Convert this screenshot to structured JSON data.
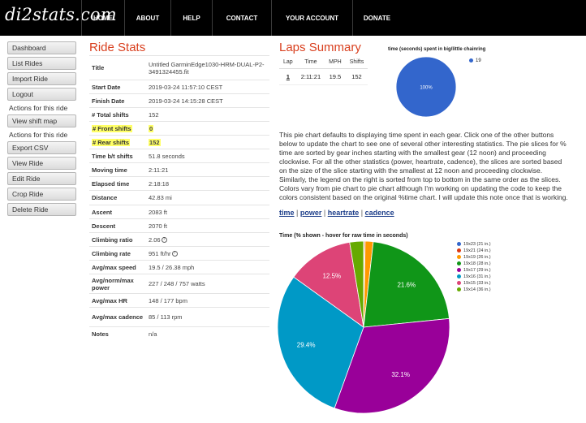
{
  "logo": "di2stats.com",
  "nav": [
    "HOME",
    "ABOUT",
    "HELP",
    "CONTACT",
    "YOUR ACCOUNT",
    "DONATE"
  ],
  "sidebar": [
    {
      "type": "button",
      "label": "Dashboard"
    },
    {
      "type": "button",
      "label": "List Rides"
    },
    {
      "type": "button",
      "label": "Import Ride"
    },
    {
      "type": "button",
      "label": "Logout"
    },
    {
      "type": "label",
      "label": "Actions for this ride"
    },
    {
      "type": "button",
      "label": "View shift map"
    },
    {
      "type": "label",
      "label": "Actions for this ride"
    },
    {
      "type": "button",
      "label": "Export CSV"
    },
    {
      "type": "button",
      "label": "View Ride"
    },
    {
      "type": "button",
      "label": "Edit Ride"
    },
    {
      "type": "button",
      "label": "Crop Ride"
    },
    {
      "type": "button",
      "label": "Delete Ride"
    }
  ],
  "ride_stats": {
    "title": "Ride Stats",
    "rows": [
      {
        "k": "Title",
        "v": "Untitled GarminEdge1030-HRM-DUAL-P2-3491324455.fit"
      },
      {
        "k": "Start Date",
        "v": "2019-03-24 11:57:10 CEST"
      },
      {
        "k": "Finish Date",
        "v": "2019-03-24 14:15:28 CEST"
      },
      {
        "k": "# Total shifts",
        "v": "152"
      },
      {
        "k": "# Front shifts",
        "v": "0",
        "highlight": true
      },
      {
        "k": "# Rear shifts",
        "v": "152",
        "highlight": true
      },
      {
        "k": "Time b/t shifts",
        "v": "51.8 seconds"
      },
      {
        "k": "Moving time",
        "v": "2:11:21"
      },
      {
        "k": "Elapsed time",
        "v": "2:18:18"
      },
      {
        "k": "Distance",
        "v": "42.83 mi"
      },
      {
        "k": "Ascent",
        "v": "2083 ft"
      },
      {
        "k": "Descent",
        "v": "2070 ft"
      },
      {
        "k": "Climbing ratio",
        "v": "2.06",
        "info": true
      },
      {
        "k": "Climbing rate",
        "v": "951 ft/hr",
        "info": true
      },
      {
        "k": "Avg/max speed",
        "v": "19.5 / 26.38 mph"
      },
      {
        "k": "Avg/norm/max power",
        "v": "227 / 248 / 757 watts"
      },
      {
        "k": "Avg/max HR",
        "v": "148 / 177 bpm"
      },
      {
        "k": "Avg/max cadence",
        "v": "85 / 113 rpm"
      },
      {
        "k": "Notes",
        "v": "n/a"
      }
    ]
  },
  "laps": {
    "title": "Laps Summary",
    "headers": [
      "Lap",
      "Time",
      "MPH",
      "Shifts"
    ],
    "rows": [
      [
        "1",
        "2:11:21",
        "19.5",
        "152"
      ]
    ]
  },
  "chart_data": [
    {
      "type": "pie",
      "title": "time (seconds) spent in big/little chainring",
      "slices": [
        {
          "label": "19",
          "value": 100,
          "color": "#3366cc"
        }
      ],
      "data_labels": [
        "100%"
      ]
    },
    {
      "type": "pie",
      "title": "Time (% shown - hover for raw time in seconds)",
      "legend": "right",
      "slices": [
        {
          "label": "19x23 (21 in.)",
          "value": 0.1,
          "color": "#3366cc",
          "shown": ""
        },
        {
          "label": "19x21 (24 in.)",
          "value": 0.2,
          "color": "#dc3912",
          "shown": ""
        },
        {
          "label": "19x19 (26 in.)",
          "value": 1.5,
          "color": "#ff9900",
          "shown": ""
        },
        {
          "label": "19x18 (28 in.)",
          "value": 21.6,
          "color": "#109618",
          "shown": "21.6%"
        },
        {
          "label": "19x17 (29 in.)",
          "value": 32.1,
          "color": "#990099",
          "shown": "32.1%"
        },
        {
          "label": "19x16 (31 in.)",
          "value": 29.4,
          "color": "#0099c6",
          "shown": "29.4%"
        },
        {
          "label": "19x15 (33 in.)",
          "value": 12.5,
          "color": "#dd4477",
          "shown": "12.5%"
        },
        {
          "label": "19x14 (36 in.)",
          "value": 2.6,
          "color": "#66aa00",
          "shown": ""
        }
      ]
    }
  ],
  "description": "This pie chart defaults to displaying time spent in each gear. Click one of the other buttons below to update the chart to see one of several other interesting statistics. The pie slices for % time are sorted by gear inches starting with the smallest gear (12 noon) and proceeding clockwise. For all the other statistics (power, heartrate, cadence), the slices are sorted based on the size of the slice starting with the smallest at 12 noon and proceeding clockwise. Similarly, the legend on the right is sorted from top to bottom in the same order as the slices. Colors vary from pie chart to pie chart although I'm working on updating the code to keep the colors consistent based on the original %time chart. I will update this note once that is working.",
  "chart_links": [
    "time",
    "power",
    "heartrate",
    "cadence"
  ],
  "colors": {
    "header_bg": "#000000",
    "title_accent": "#d9401f",
    "highlight": "#ffff66",
    "link": "#1d3e8a"
  }
}
